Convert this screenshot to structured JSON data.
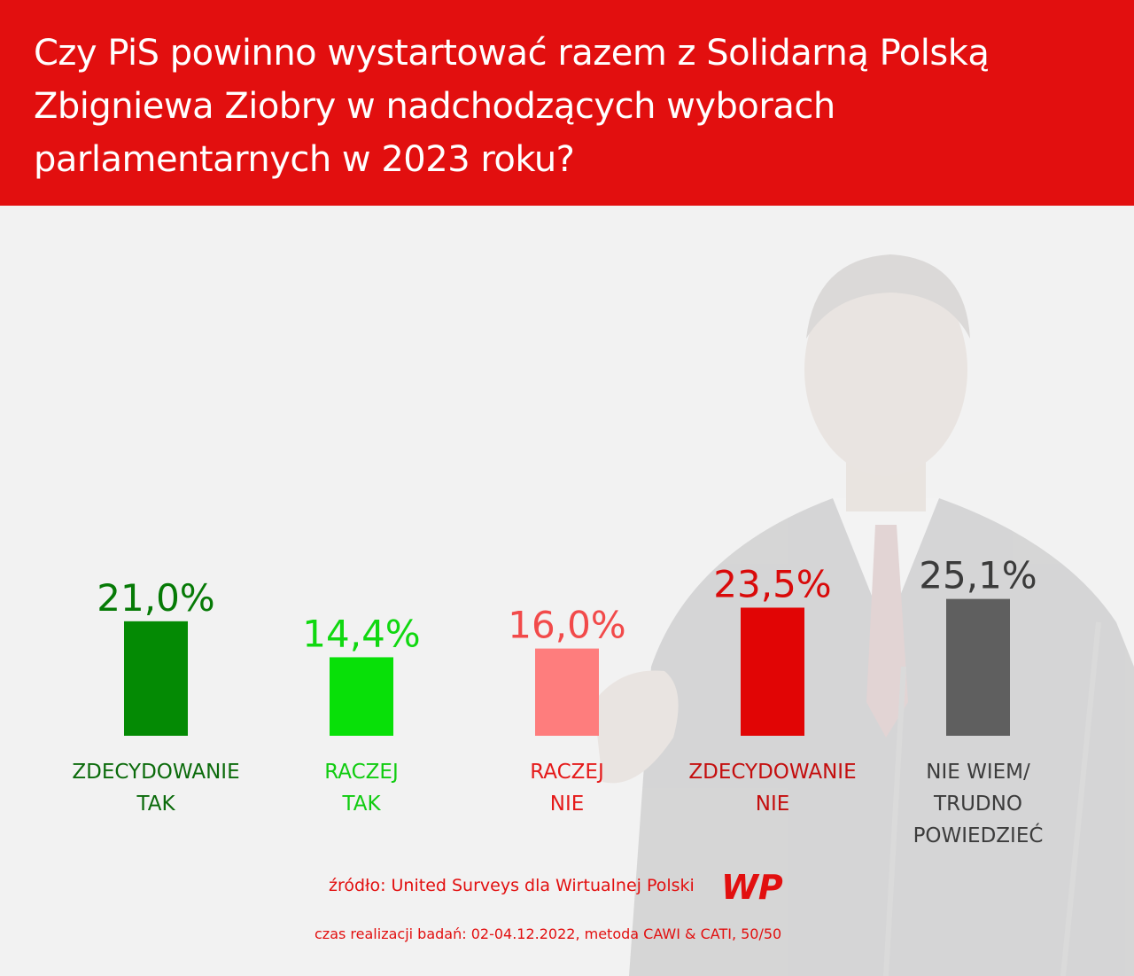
{
  "header": {
    "title_lines": [
      "Czy PiS powinno wystartować razem z Solidarną Polską",
      "Zbigniewa Ziobry w nadchodzących wyborach",
      "parlamentarnych w 2023 roku?"
    ]
  },
  "colors": {
    "header_bg": "#e20f0f",
    "background": "#f2f2f2",
    "source_text": "#e20f0f"
  },
  "chart_data": {
    "type": "bar",
    "title": "Czy PiS powinno wystartować razem z Solidarną Polską Zbigniewa Ziobry w nadchodzących wyborach parlamentarnych w 2023 roku?",
    "categories": [
      [
        "ZDECYDOWANIE",
        "TAK"
      ],
      [
        "RACZEJ",
        "TAK"
      ],
      [
        "RACZEJ",
        "NIE"
      ],
      [
        "ZDECYDOWANIE",
        "NIE"
      ],
      [
        "NIE WIEM/",
        "TRUDNO",
        "POWIEDZIEĆ"
      ]
    ],
    "values": [
      21.0,
      14.4,
      16.0,
      23.5,
      25.1
    ],
    "value_labels": [
      "21,0%",
      "14,4%",
      "16,0%",
      "23,5%",
      "25,1%"
    ],
    "bar_colors": [
      "#048a04",
      "#08e008",
      "#fe7d7d",
      "#e10505",
      "#5f5f5f"
    ],
    "label_colors": [
      "#0b6b0b",
      "#10cc10",
      "#e51a1a",
      "#c40e0e",
      "#3c3c3c"
    ],
    "value_colors": [
      "#067a06",
      "#10d810",
      "#f24a4a",
      "#d90a0a",
      "#3b3b3b"
    ],
    "xlabel": "",
    "ylabel": "",
    "grid": false
  },
  "source": "źródło: United Surveys dla Wirtualnej Polski",
  "logo_text": "WP",
  "meta": "czas realizacji badań: 02-04.12.2022, metoda CAWI & CATI, 50/50"
}
